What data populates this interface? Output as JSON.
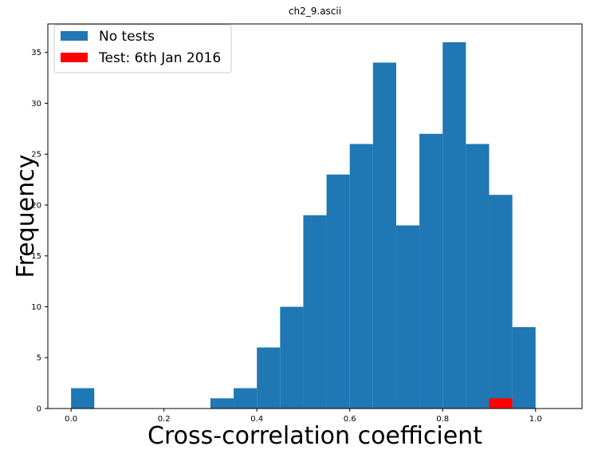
{
  "chart_data": {
    "type": "bar",
    "title": "ch2_9.ascii",
    "xlabel": "Cross-correlation coefficient",
    "ylabel": "Frequency",
    "xlim": [
      -0.05,
      1.1
    ],
    "ylim": [
      0,
      37.8
    ],
    "xticks": [
      0.0,
      0.2,
      0.4,
      0.6,
      0.8,
      1.0
    ],
    "xtick_labels": [
      "0.0",
      "0.2",
      "0.4",
      "0.6",
      "0.8",
      "1.0"
    ],
    "yticks": [
      0,
      5,
      10,
      15,
      20,
      25,
      30,
      35
    ],
    "ytick_labels": [
      "0",
      "5",
      "10",
      "15",
      "20",
      "25",
      "30",
      "35"
    ],
    "bin_width": 0.05,
    "legend_position": "upper-left",
    "grid": false,
    "series": [
      {
        "name": "No tests",
        "color": "#1f77b4",
        "bin_starts": [
          0.0,
          0.05,
          0.1,
          0.15,
          0.2,
          0.25,
          0.3,
          0.35,
          0.4,
          0.45,
          0.5,
          0.55,
          0.6,
          0.65,
          0.7,
          0.75,
          0.8,
          0.85,
          0.9,
          0.95
        ],
        "values": [
          2,
          0,
          0,
          0,
          0,
          0,
          1,
          2,
          6,
          10,
          19,
          23,
          26,
          34,
          18,
          27,
          36,
          26,
          21,
          8
        ]
      },
      {
        "name": "Test: 6th Jan 2016",
        "color": "#ff0000",
        "bin_starts": [
          0.9
        ],
        "values": [
          1
        ]
      }
    ]
  }
}
